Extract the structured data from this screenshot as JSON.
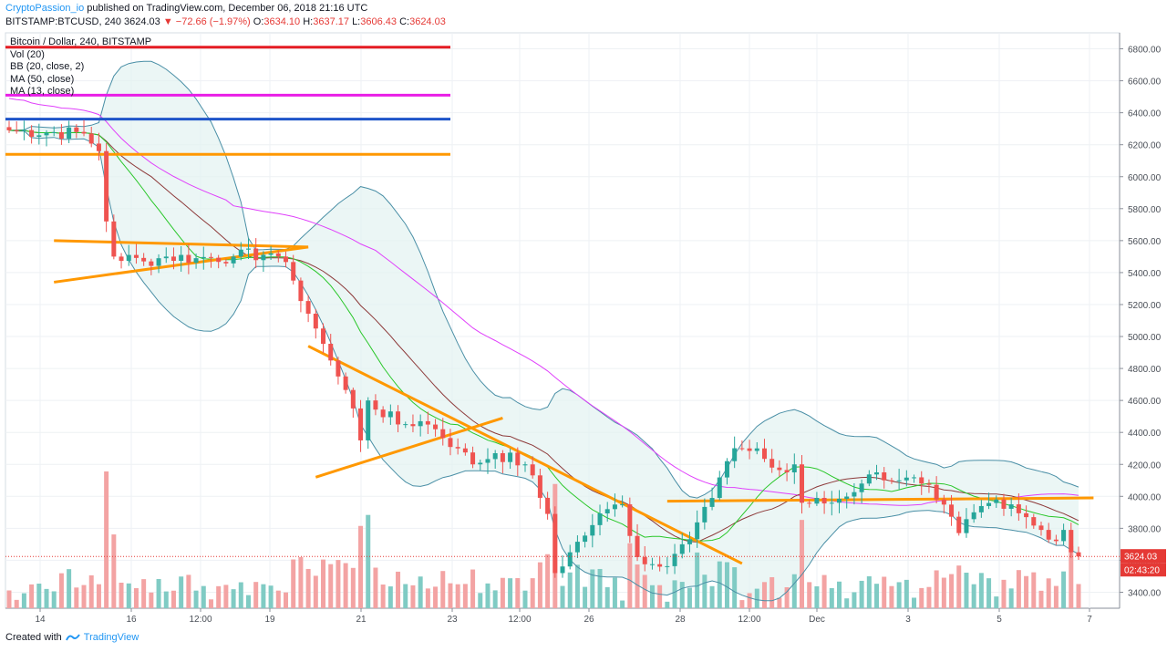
{
  "header": {
    "author": "CryptoPassion_io",
    "published_text": "published on TradingView.com, December 06, 2018 21:16 UTC"
  },
  "ohlc": {
    "symbol": "BITSTAMP:BTCUSD, 240",
    "last": "3624.03",
    "change": "▼ −72.66 (−1.97%)",
    "o_label": "O:",
    "o": "3634.10",
    "h_label": "H:",
    "h": "3637.17",
    "l_label": "L:",
    "l": "3606.43",
    "c_label": "C:",
    "c": "3624.03"
  },
  "legend": {
    "title": "Bitcoin / Dollar, 240, BITSTAMP",
    "items": [
      "Vol (20)",
      "BB (20, close, 2)",
      "MA (50, close)",
      "MA (13, close)"
    ]
  },
  "footer": {
    "created_with": "Created with",
    "brand": "TradingView"
  },
  "price_tags": {
    "last": "3624.03",
    "countdown": "02:43:20"
  },
  "colors": {
    "up": "#26a69a",
    "down": "#ef5350",
    "vol_up": "#80cbc4",
    "vol_down": "#f3a3a3",
    "bb": "#4a8fa6",
    "bb_fill": "#e3f2f1",
    "ma50": "#e040fb",
    "ma13": "#29c729",
    "ma_dark": "#8d3a3a",
    "orange": "#ff9800",
    "red_line": "#e51c23",
    "magenta_line": "#e91ee6",
    "blue_line": "#1e54c9"
  },
  "chart_data": {
    "type": "candlestick",
    "title": "Bitcoin / Dollar, 240, BITSTAMP",
    "ylim": [
      3300,
      6900
    ],
    "y_ticks": [
      "3400.00",
      "3600.00",
      "3800.00",
      "4000.00",
      "4200.00",
      "4400.00",
      "4600.00",
      "4800.00",
      "5000.00",
      "5200.00",
      "5400.00",
      "5600.00",
      "5800.00",
      "6000.00",
      "6200.00",
      "6400.00",
      "6600.00",
      "6800.00"
    ],
    "x_ticks": [
      "14",
      "16",
      "12:00",
      "19",
      "21",
      "23",
      "12:00",
      "26",
      "28",
      "12:00",
      "Dec",
      "3",
      "5",
      "7"
    ],
    "candle_count": 144,
    "anchors": [
      [
        0,
        6290
      ],
      [
        10,
        6270
      ],
      [
        12,
        6160
      ],
      [
        13,
        5720
      ],
      [
        14,
        5500
      ],
      [
        18,
        5470
      ],
      [
        21,
        5500
      ],
      [
        25,
        5490
      ],
      [
        30,
        5500
      ],
      [
        35,
        5520
      ],
      [
        36,
        5500
      ],
      [
        38,
        5350
      ],
      [
        41,
        5050
      ],
      [
        43,
        4850
      ],
      [
        44,
        4750
      ],
      [
        46,
        4550
      ],
      [
        47,
        4350
      ],
      [
        48,
        4600
      ],
      [
        52,
        4450
      ],
      [
        55,
        4470
      ],
      [
        57,
        4420
      ],
      [
        60,
        4300
      ],
      [
        62,
        4200
      ],
      [
        65,
        4270
      ],
      [
        69,
        4200
      ],
      [
        72,
        3890
      ],
      [
        73,
        3520
      ],
      [
        75,
        3650
      ],
      [
        78,
        3820
      ],
      [
        80,
        3920
      ],
      [
        82,
        3950
      ],
      [
        84,
        3620
      ],
      [
        87,
        3560
      ],
      [
        89,
        3640
      ],
      [
        90,
        3700
      ],
      [
        94,
        3990
      ],
      [
        96,
        4220
      ],
      [
        98,
        4300
      ],
      [
        100,
        4300
      ],
      [
        102,
        4180
      ],
      [
        104,
        4150
      ],
      [
        105,
        4200
      ],
      [
        106,
        3960
      ],
      [
        110,
        3960
      ],
      [
        114,
        4080
      ],
      [
        116,
        4150
      ],
      [
        119,
        4100
      ],
      [
        122,
        4080
      ],
      [
        124,
        3980
      ],
      [
        127,
        3770
      ],
      [
        129,
        3900
      ],
      [
        132,
        3980
      ],
      [
        134,
        3950
      ],
      [
        136,
        3870
      ],
      [
        138,
        3790
      ],
      [
        140,
        3720
      ],
      [
        141,
        3790
      ],
      [
        142,
        3650
      ],
      [
        143,
        3624
      ]
    ],
    "volume_baseline": 3368,
    "volume_scale": 0.9,
    "volumes_seed": 7,
    "horizontal_levels": [
      {
        "price": 6810,
        "color": "red_line"
      },
      {
        "price": 6510,
        "color": "magenta_line"
      },
      {
        "price": 6360,
        "color": "blue_line"
      },
      {
        "price": 6140,
        "color": "orange"
      }
    ],
    "trendlines": [
      {
        "from": [
          6,
          5600
        ],
        "to": [
          40,
          5560
        ]
      },
      {
        "from": [
          6,
          5340
        ],
        "to": [
          40,
          5560
        ]
      },
      {
        "from": [
          40,
          4940
        ],
        "to": [
          98,
          3580
        ]
      },
      {
        "from": [
          41,
          4120
        ],
        "to": [
          66,
          4490
        ]
      },
      {
        "from": [
          88,
          3970
        ],
        "to": [
          145,
          3990
        ]
      }
    ],
    "last_price": 3624.03
  }
}
